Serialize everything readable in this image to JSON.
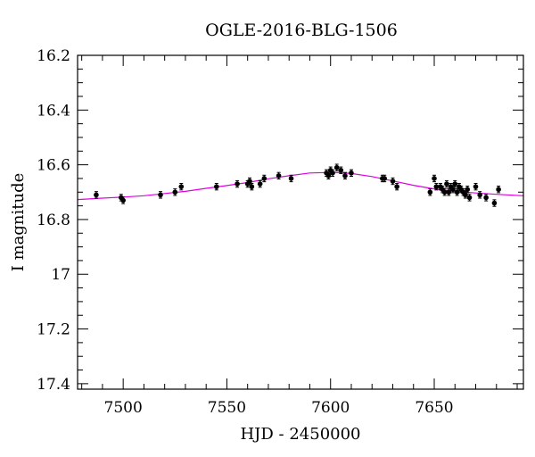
{
  "chart_data": {
    "type": "scatter",
    "title": "OGLE-2016-BLG-1506",
    "xlabel": "HJD - 2450000",
    "ylabel": "I magnitude",
    "xlim": [
      7478,
      7693
    ],
    "ylim": [
      17.42,
      16.2
    ],
    "y_inverted": true,
    "x_ticks": [
      7500,
      7550,
      7600,
      7650
    ],
    "x_tick_labels": [
      "7500",
      "7550",
      "7600",
      "7650"
    ],
    "y_ticks": [
      16.2,
      16.4,
      16.6,
      16.8,
      17,
      17.2,
      17.4
    ],
    "y_tick_labels": [
      "16.2",
      "16.4",
      "16.6",
      "16.8",
      "17",
      "17.2",
      "17.4"
    ],
    "x_minor_step": 10,
    "y_minor_step": 0.05,
    "model_color": "#e000e0",
    "model_curve": {
      "x": [
        7478,
        7490,
        7500,
        7510,
        7520,
        7530,
        7540,
        7550,
        7560,
        7570,
        7580,
        7590,
        7600,
        7605,
        7610,
        7620,
        7630,
        7640,
        7650,
        7660,
        7670,
        7680,
        7693
      ],
      "y": [
        16.727,
        16.722,
        16.718,
        16.713,
        16.705,
        16.697,
        16.686,
        16.676,
        16.665,
        16.651,
        16.64,
        16.63,
        16.628,
        16.629,
        16.632,
        16.643,
        16.659,
        16.675,
        16.688,
        16.697,
        16.703,
        16.708,
        16.713
      ]
    },
    "series": [
      {
        "x": [
          7487,
          7499,
          7500,
          7518,
          7525,
          7528,
          7545,
          7555,
          7560,
          7561,
          7562,
          7566,
          7568,
          7575,
          7581,
          7598,
          7599,
          7600,
          7601,
          7603,
          7605,
          7607,
          7610,
          7625,
          7626,
          7630,
          7632,
          7648,
          7650,
          7651,
          7653,
          7654,
          7655,
          7656,
          7657,
          7658,
          7659,
          7660,
          7661,
          7662,
          7663,
          7664,
          7665,
          7666,
          7667,
          7670,
          7672,
          7675,
          7679,
          7681
        ],
        "y": [
          16.71,
          16.72,
          16.73,
          16.71,
          16.7,
          16.68,
          16.68,
          16.67,
          16.67,
          16.66,
          16.68,
          16.67,
          16.65,
          16.64,
          16.65,
          16.63,
          16.64,
          16.62,
          16.63,
          16.61,
          16.62,
          16.64,
          16.63,
          16.65,
          16.65,
          16.66,
          16.68,
          16.7,
          16.65,
          16.68,
          16.68,
          16.69,
          16.7,
          16.67,
          16.7,
          16.68,
          16.69,
          16.67,
          16.7,
          16.68,
          16.69,
          16.7,
          16.71,
          16.69,
          16.72,
          16.68,
          16.71,
          16.72,
          16.74,
          16.69
        ],
        "yerr": 0.012
      }
    ]
  }
}
